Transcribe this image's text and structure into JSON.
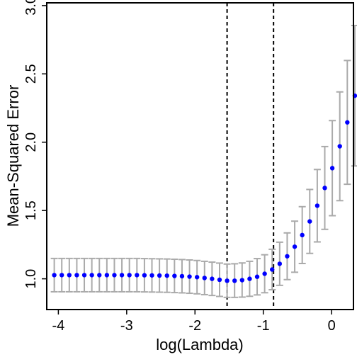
{
  "chart_data": {
    "type": "scatter",
    "title": "",
    "xlabel": "log(Lambda)",
    "ylabel": "Mean-Squared Error",
    "xlim": [
      -4.17,
      0.32
    ],
    "ylim": [
      0.775,
      3.02
    ],
    "x_ticks": [
      -4,
      -3,
      -2,
      -1,
      0
    ],
    "x_tick_labels": [
      "-4",
      "-3",
      "-2",
      "-1",
      "0"
    ],
    "y_ticks": [
      1.0,
      1.5,
      2.0,
      2.5,
      3.0
    ],
    "y_tick_labels": [
      "1.0",
      "1.5",
      "2.0",
      "2.5",
      "3.0"
    ],
    "grid": false,
    "legend": "none",
    "colors": {
      "points": "#0000ff",
      "error_bars": "#aaaaaa",
      "reference_lines": "#000000"
    },
    "reference_lines_x": [
      -1.53,
      -0.85
    ],
    "series": [
      {
        "points": [
          {
            "x": -4.06,
            "y": 1.027,
            "lo": 0.905,
            "hi": 1.149
          },
          {
            "x": -3.95,
            "y": 1.027,
            "lo": 0.905,
            "hi": 1.149
          },
          {
            "x": -3.84,
            "y": 1.027,
            "lo": 0.905,
            "hi": 1.149
          },
          {
            "x": -3.73,
            "y": 1.027,
            "lo": 0.905,
            "hi": 1.149
          },
          {
            "x": -3.62,
            "y": 1.027,
            "lo": 0.905,
            "hi": 1.149
          },
          {
            "x": -3.51,
            "y": 1.027,
            "lo": 0.905,
            "hi": 1.149
          },
          {
            "x": -3.4,
            "y": 1.027,
            "lo": 0.905,
            "hi": 1.149
          },
          {
            "x": -3.29,
            "y": 1.027,
            "lo": 0.905,
            "hi": 1.149
          },
          {
            "x": -3.18,
            "y": 1.027,
            "lo": 0.905,
            "hi": 1.149
          },
          {
            "x": -3.07,
            "y": 1.027,
            "lo": 0.905,
            "hi": 1.149
          },
          {
            "x": -2.96,
            "y": 1.027,
            "lo": 0.905,
            "hi": 1.149
          },
          {
            "x": -2.85,
            "y": 1.027,
            "lo": 0.905,
            "hi": 1.149
          },
          {
            "x": -2.74,
            "y": 1.026,
            "lo": 0.904,
            "hi": 1.148
          },
          {
            "x": -2.63,
            "y": 1.025,
            "lo": 0.903,
            "hi": 1.147
          },
          {
            "x": -2.52,
            "y": 1.024,
            "lo": 0.902,
            "hi": 1.146
          },
          {
            "x": -2.41,
            "y": 1.023,
            "lo": 0.901,
            "hi": 1.145
          },
          {
            "x": -2.3,
            "y": 1.021,
            "lo": 0.899,
            "hi": 1.143
          },
          {
            "x": -2.19,
            "y": 1.019,
            "lo": 0.897,
            "hi": 1.141
          },
          {
            "x": -2.08,
            "y": 1.016,
            "lo": 0.894,
            "hi": 1.138
          },
          {
            "x": -1.97,
            "y": 1.012,
            "lo": 0.89,
            "hi": 1.134
          },
          {
            "x": -1.86,
            "y": 1.006,
            "lo": 0.884,
            "hi": 1.128
          },
          {
            "x": -1.75,
            "y": 1.0,
            "lo": 0.878,
            "hi": 1.122
          },
          {
            "x": -1.64,
            "y": 0.993,
            "lo": 0.871,
            "hi": 1.115
          },
          {
            "x": -1.53,
            "y": 0.986,
            "lo": 0.864,
            "hi": 1.108
          },
          {
            "x": -1.42,
            "y": 0.986,
            "lo": 0.864,
            "hi": 1.11
          },
          {
            "x": -1.31,
            "y": 0.99,
            "lo": 0.866,
            "hi": 1.116
          },
          {
            "x": -1.2,
            "y": 1.0,
            "lo": 0.872,
            "hi": 1.128
          },
          {
            "x": -1.09,
            "y": 1.015,
            "lo": 0.882,
            "hi": 1.148
          },
          {
            "x": -0.98,
            "y": 1.037,
            "lo": 0.898,
            "hi": 1.176
          },
          {
            "x": -0.87,
            "y": 1.068,
            "lo": 0.92,
            "hi": 1.216
          },
          {
            "x": -0.76,
            "y": 1.11,
            "lo": 0.952,
            "hi": 1.268
          },
          {
            "x": -0.65,
            "y": 1.165,
            "lo": 0.994,
            "hi": 1.336
          },
          {
            "x": -0.54,
            "y": 1.235,
            "lo": 1.048,
            "hi": 1.422
          },
          {
            "x": -0.43,
            "y": 1.32,
            "lo": 1.112,
            "hi": 1.528
          },
          {
            "x": -0.32,
            "y": 1.42,
            "lo": 1.186,
            "hi": 1.654
          },
          {
            "x": -0.21,
            "y": 1.535,
            "lo": 1.27,
            "hi": 1.8
          },
          {
            "x": -0.1,
            "y": 1.665,
            "lo": 1.362,
            "hi": 1.968
          },
          {
            "x": 0.01,
            "y": 1.81,
            "lo": 1.462,
            "hi": 2.158
          },
          {
            "x": 0.12,
            "y": 1.97,
            "lo": 1.572,
            "hi": 2.368
          },
          {
            "x": 0.23,
            "y": 2.145,
            "lo": 1.692,
            "hi": 2.598
          },
          {
            "x": 0.34,
            "y": 2.34,
            "lo": 1.826,
            "hi": 2.854
          }
        ]
      }
    ]
  }
}
